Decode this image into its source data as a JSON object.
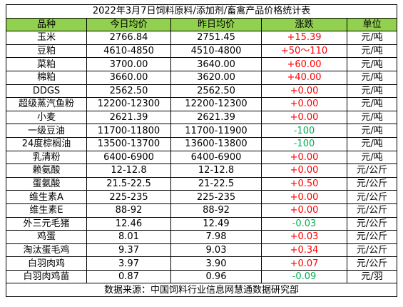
{
  "title": "2022年3月7日饲料原料/添加剂/畜禽产品价格统计表",
  "headers": [
    "品种",
    "今日均价",
    "昨日均价",
    "涨跌",
    "单位"
  ],
  "rows": [
    {
      "name": "玉米",
      "today": "2766.84",
      "yesterday": "2751.45",
      "change": "+15.39",
      "dir": "up",
      "unit": "元/吨"
    },
    {
      "name": "豆粕",
      "today": "4610-4850",
      "yesterday": "4510-4800",
      "change": "+50～110",
      "dir": "up",
      "unit": "元/吨"
    },
    {
      "name": "菜粕",
      "today": "3700.00",
      "yesterday": "3640.00",
      "change": "+60.00",
      "dir": "up",
      "unit": "元/吨"
    },
    {
      "name": "棉粕",
      "today": "3660.00",
      "yesterday": "3620.00",
      "change": "+40.00",
      "dir": "up",
      "unit": "元/吨"
    },
    {
      "name": "DDGS",
      "today": "2562.50",
      "yesterday": "2562.50",
      "change": "+0.00",
      "dir": "up",
      "unit": "元/吨"
    },
    {
      "name": "超级蒸汽鱼粉",
      "today": "12200-12300",
      "yesterday": "12200-12300",
      "change": "+0.00",
      "dir": "up",
      "unit": "元/吨"
    },
    {
      "name": "小麦",
      "today": "2621.39",
      "yesterday": "2621.39",
      "change": "+0.00",
      "dir": "up",
      "unit": "元/吨"
    },
    {
      "name": "一级豆油",
      "today": "11700-11800",
      "yesterday": "11700-11900",
      "change": "-100",
      "dir": "down",
      "unit": "元/吨"
    },
    {
      "name": "24度棕榈油",
      "today": "13500-13700",
      "yesterday": "13600-13800",
      "change": "-100",
      "dir": "down",
      "unit": "元/吨"
    },
    {
      "name": "乳清粉",
      "today": "6400-6900",
      "yesterday": "6400-6900",
      "change": "+0.00",
      "dir": "up",
      "unit": "元/吨"
    },
    {
      "name": "赖氨酸",
      "today": "12-12.8",
      "yesterday": "12-12.8",
      "change": "+0.00",
      "dir": "up",
      "unit": "元/公斤"
    },
    {
      "name": "蛋氨酸",
      "today": "21.5-22.5",
      "yesterday": "21-22.5",
      "change": "+0.50",
      "dir": "up",
      "unit": "元/公斤"
    },
    {
      "name": "维生素A",
      "today": "225-235",
      "yesterday": "225-235",
      "change": "+0.00",
      "dir": "up",
      "unit": "元/公斤"
    },
    {
      "name": "维生素E",
      "today": "88-92",
      "yesterday": "88-92",
      "change": "+0.00",
      "dir": "up",
      "unit": "元/公斤"
    },
    {
      "name": "外三元毛猪",
      "today": "12.46",
      "yesterday": "12.49",
      "change": "-0.03",
      "dir": "down",
      "unit": "元/公斤"
    },
    {
      "name": "鸡蛋",
      "today": "8.01",
      "yesterday": "7.98",
      "change": "+0.03",
      "dir": "up",
      "unit": "元/公斤"
    },
    {
      "name": "淘汰蛋毛鸡",
      "today": "9.37",
      "yesterday": "9.03",
      "change": "+0.34",
      "dir": "up",
      "unit": "元/公斤"
    },
    {
      "name": "白羽肉鸡",
      "today": "3.97",
      "yesterday": "3.90",
      "change": "+0.07",
      "dir": "up",
      "unit": "元/公斤"
    },
    {
      "name": "白羽肉鸡苗",
      "today": "0.87",
      "yesterday": "0.96",
      "change": "-0.09",
      "dir": "down",
      "unit": "元/羽"
    }
  ],
  "source": "数据来源：中国饲料行业信息网慧通数据研究部",
  "colors": {
    "header_bg": "#92d050",
    "up": "#ff0000",
    "down": "#00b050"
  }
}
